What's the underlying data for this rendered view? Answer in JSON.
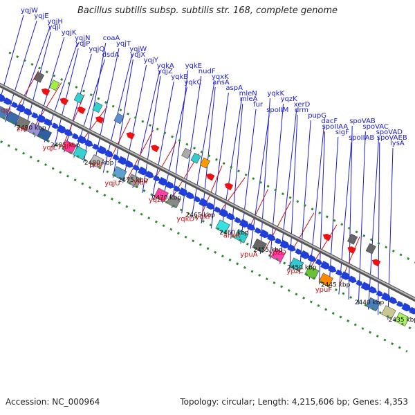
{
  "title": "Bacillus subtilis subsp. subtilis str. 168, complete genome",
  "footer": {
    "accession": "Accession: NC_000964",
    "topology": "Topology: circular; Length: 4,215,606 bp; Genes: 4,353"
  },
  "colors": {
    "forward_label": "#1a1ad4",
    "reverse_label": "#cc1111",
    "forward_arrow": "#1f3fd8",
    "reverse_arrow": "#ee1111",
    "backbone": "#999999",
    "ruler_dots": "#2c8c2c"
  },
  "ruler_labels": [
    "2490 kbp",
    "2485 kbp",
    "2480 kbp",
    "2475 kbp",
    "2470 kbp",
    "2465 kbp",
    "2460 kbp",
    "2455 kbp",
    "2450 kbp",
    "2445 kbp",
    "2440 kbp",
    "2435 kbp"
  ],
  "forward_genes": [
    "yqjW",
    "yqjE",
    "yqjH",
    "yqjI",
    "yqjK",
    "yqjN",
    "yqjP",
    "yqjQ",
    "dsdA",
    "coaA",
    "yqjT",
    "yqjW",
    "yqjX",
    "yqjY",
    "yqkA",
    "yqjZ",
    "yqkB",
    "yqkC",
    "yqkE",
    "nudF",
    "yqxK",
    "ansA",
    "aspA",
    "mleN",
    "mleA",
    "fur",
    "spoIIM",
    "yqkK",
    "yqzK",
    "xerD",
    "drm",
    "pupG",
    "dacF",
    "spoIIAA",
    "sigF",
    "spoIIAB",
    "spoVAB",
    "spoVAC",
    "spoVAD",
    "spoVAEB",
    "lysA"
  ],
  "reverse_genes": [
    "yqzJ",
    "zwf",
    "yqjL",
    "yqjM",
    "proI",
    "yqjU",
    "yqjV",
    "yqzH",
    "yqkD",
    "yqkF",
    "ansR",
    "ypuA",
    "ypzD",
    "ypzC",
    "ypuF"
  ]
}
